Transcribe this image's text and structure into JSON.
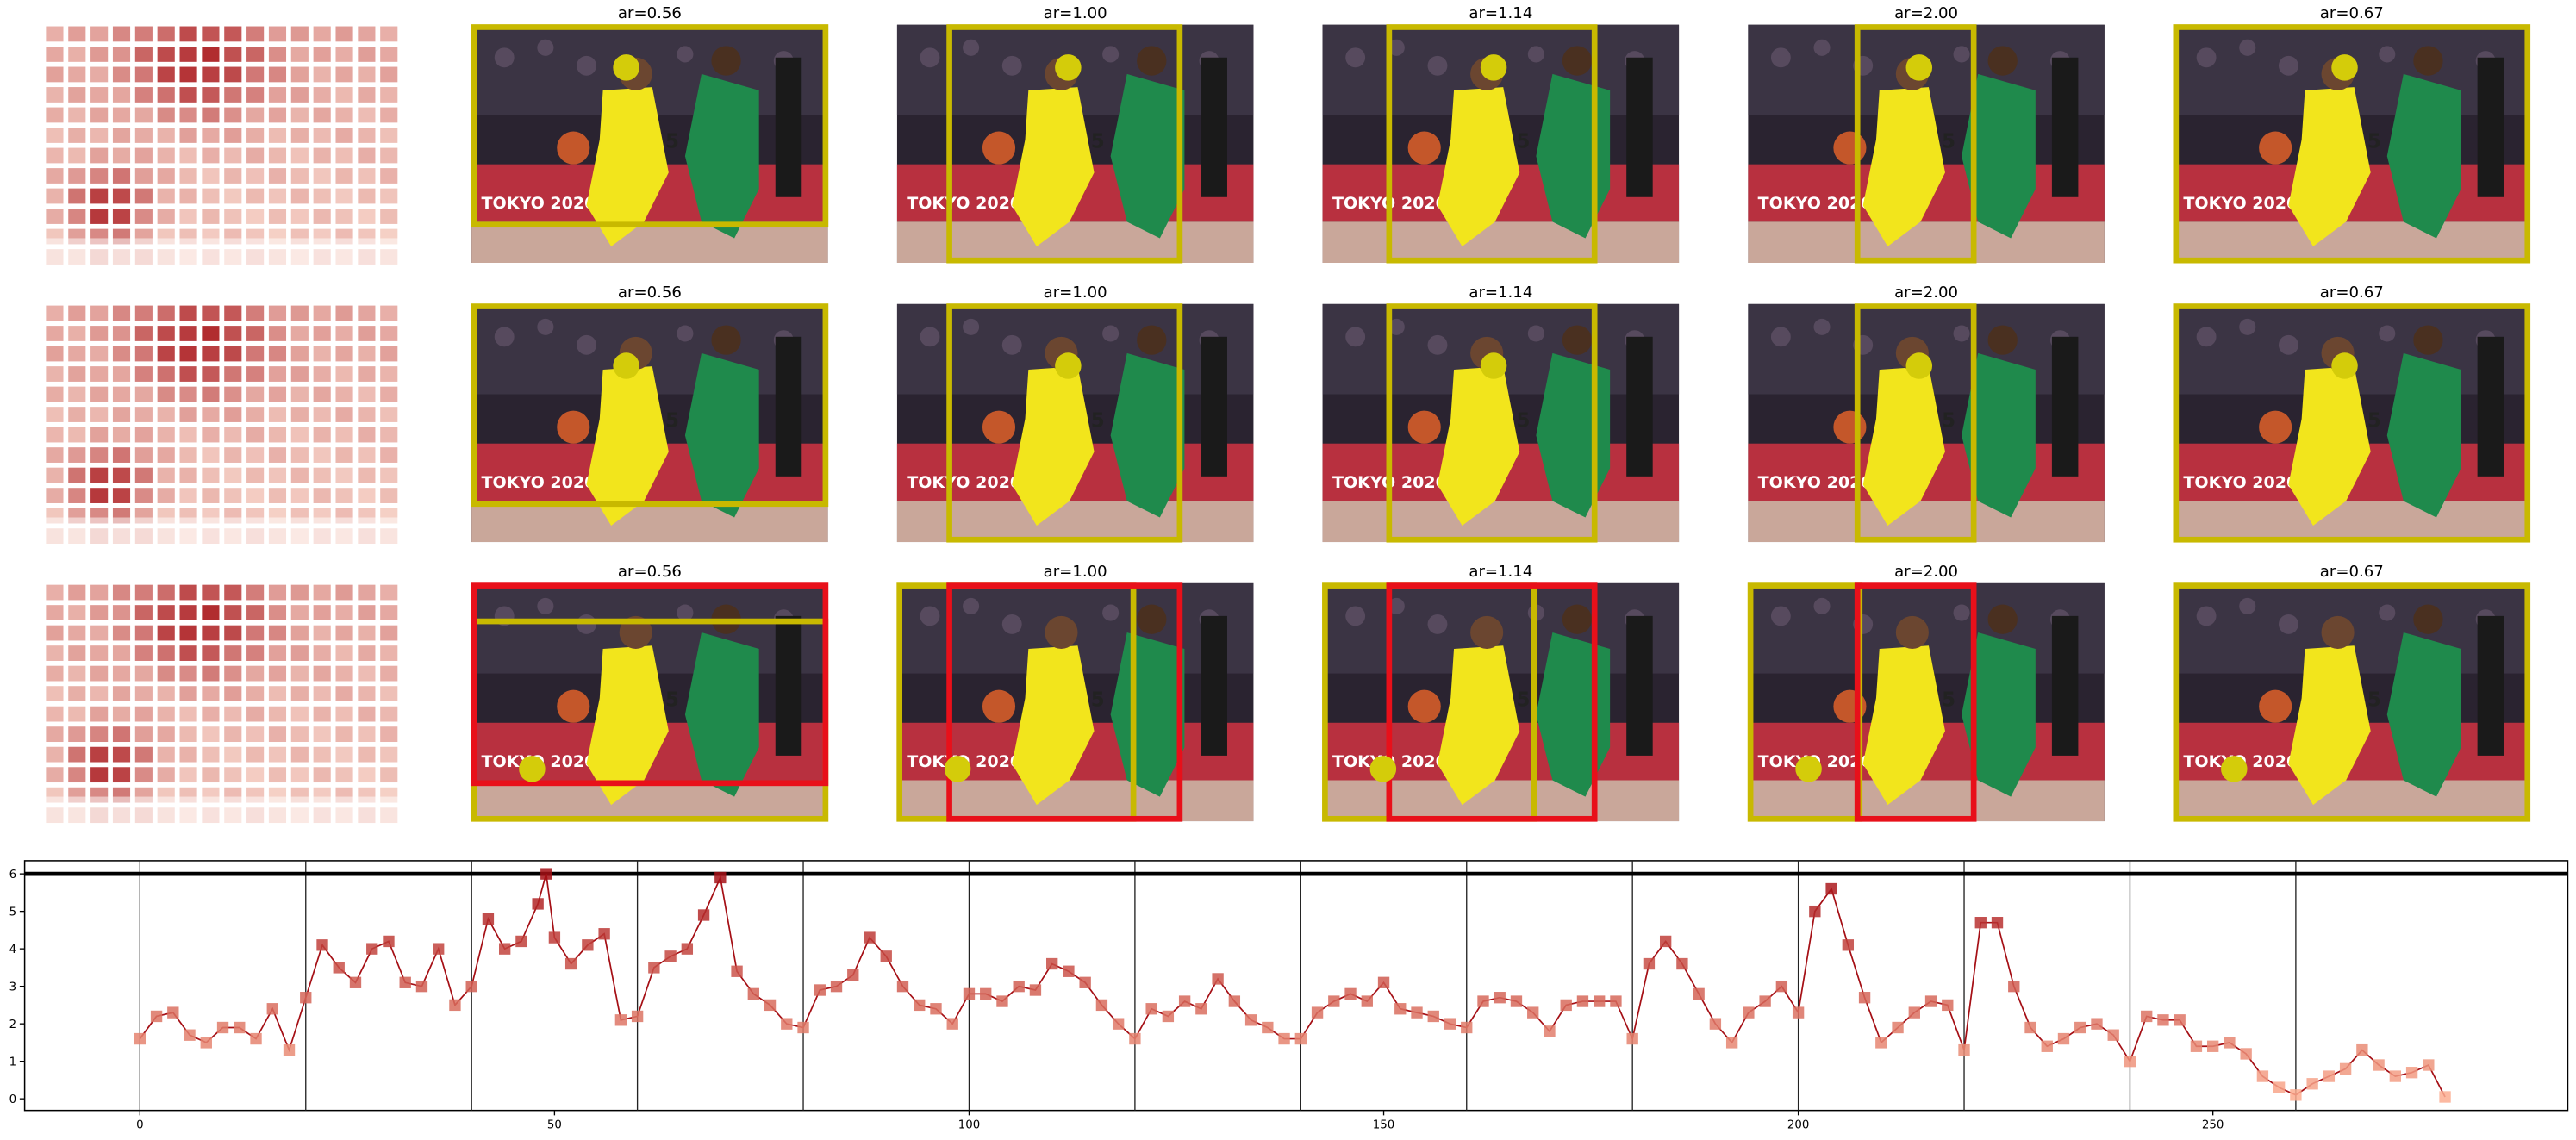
{
  "panel_titles": [
    [
      "ar=0.56",
      "ar=1.00",
      "ar=1.14",
      "ar=2.00",
      "ar=0.67"
    ],
    [
      "ar=0.56",
      "ar=1.00",
      "ar=1.14",
      "ar=2.00",
      "ar=0.67"
    ],
    [
      "ar=0.56",
      "ar=1.00",
      "ar=1.14",
      "ar=2.00",
      "ar=0.67"
    ]
  ],
  "chart_data": {
    "type": "line",
    "x": [
      0,
      2,
      4,
      6,
      8,
      10,
      12,
      14,
      16,
      18,
      20,
      22,
      24,
      26,
      28,
      30,
      32,
      34,
      36,
      38,
      40,
      42,
      44,
      46,
      48,
      49,
      50,
      52,
      54,
      56,
      58,
      60,
      62,
      64,
      66,
      68,
      70,
      72,
      74,
      76,
      78,
      80,
      82,
      84,
      86,
      88,
      90,
      92,
      94,
      96,
      98,
      100,
      102,
      104,
      106,
      108,
      110,
      112,
      114,
      116,
      118,
      120,
      122,
      124,
      126,
      128,
      130,
      132,
      134,
      136,
      138,
      140,
      142,
      144,
      146,
      148,
      150,
      152,
      154,
      156,
      158,
      160,
      162,
      164,
      166,
      168,
      170,
      172,
      174,
      176,
      178,
      180,
      182,
      184,
      186,
      188,
      190,
      192,
      194,
      196,
      198,
      200,
      202,
      204,
      206,
      208,
      210,
      212,
      214,
      216,
      218,
      220,
      222,
      224,
      226,
      228,
      230,
      232,
      234,
      236,
      238,
      240,
      242,
      244,
      246,
      248,
      250,
      252,
      254,
      256,
      258,
      260,
      262,
      264,
      266,
      268,
      270,
      272,
      274,
      276,
      278
    ],
    "series": [
      {
        "values": [
          1.6,
          2.2,
          2.3,
          1.7,
          1.5,
          1.9,
          1.9,
          1.6,
          2.4,
          1.3,
          2.7,
          4.1,
          3.5,
          3.1,
          4.0,
          4.2,
          3.1,
          3.0,
          4.0,
          2.5,
          3.0,
          4.8,
          4.0,
          4.2,
          5.2,
          6.0,
          4.3,
          3.6,
          4.1,
          4.4,
          2.1,
          2.2,
          3.5,
          3.8,
          4.0,
          4.9,
          5.9,
          3.4,
          2.8,
          2.5,
          2.0,
          1.9,
          2.9,
          3.0,
          3.3,
          4.3,
          3.8,
          3.0,
          2.5,
          2.4,
          2.0,
          2.8,
          2.8,
          2.6,
          3.0,
          2.9,
          3.6,
          3.4,
          3.1,
          2.5,
          2.0,
          1.6,
          2.4,
          2.2,
          2.6,
          2.4,
          3.2,
          2.6,
          2.1,
          1.9,
          1.6,
          1.6,
          2.3,
          2.6,
          2.8,
          2.6,
          3.1,
          2.4,
          2.3,
          2.2,
          2.0,
          1.9,
          2.6,
          2.7,
          2.6,
          2.3,
          1.8,
          2.5,
          2.6,
          2.6,
          2.6,
          1.6,
          3.6,
          4.2,
          3.6,
          2.8,
          2.0,
          1.5,
          2.3,
          2.6,
          3.0,
          2.3,
          5.0,
          5.6,
          4.1,
          2.7,
          1.5,
          1.9,
          2.3,
          2.6,
          2.5,
          1.3,
          4.7,
          4.7,
          3.0,
          1.9,
          1.4,
          1.6,
          1.9,
          2.0,
          1.7,
          1.0,
          2.2,
          2.1,
          2.1,
          1.4,
          1.4,
          1.5,
          1.2,
          0.6,
          0.3,
          0.1,
          0.4,
          0.6,
          0.8,
          1.3,
          0.9,
          0.6,
          0.7,
          0.9,
          0.05
        ],
        "color": "#a50f15"
      }
    ],
    "xlim": [
      -13.9,
      292.8
    ],
    "ylim": [
      -0.31,
      6.35
    ],
    "xticks": [
      0,
      50,
      100,
      150,
      200,
      250
    ],
    "yticks": [
      0,
      1,
      2,
      3,
      4,
      5,
      6
    ],
    "vlines": [
      0,
      20,
      40,
      60,
      80,
      100,
      120,
      140,
      160,
      180,
      200,
      220,
      240,
      260
    ],
    "hline": 6
  }
}
